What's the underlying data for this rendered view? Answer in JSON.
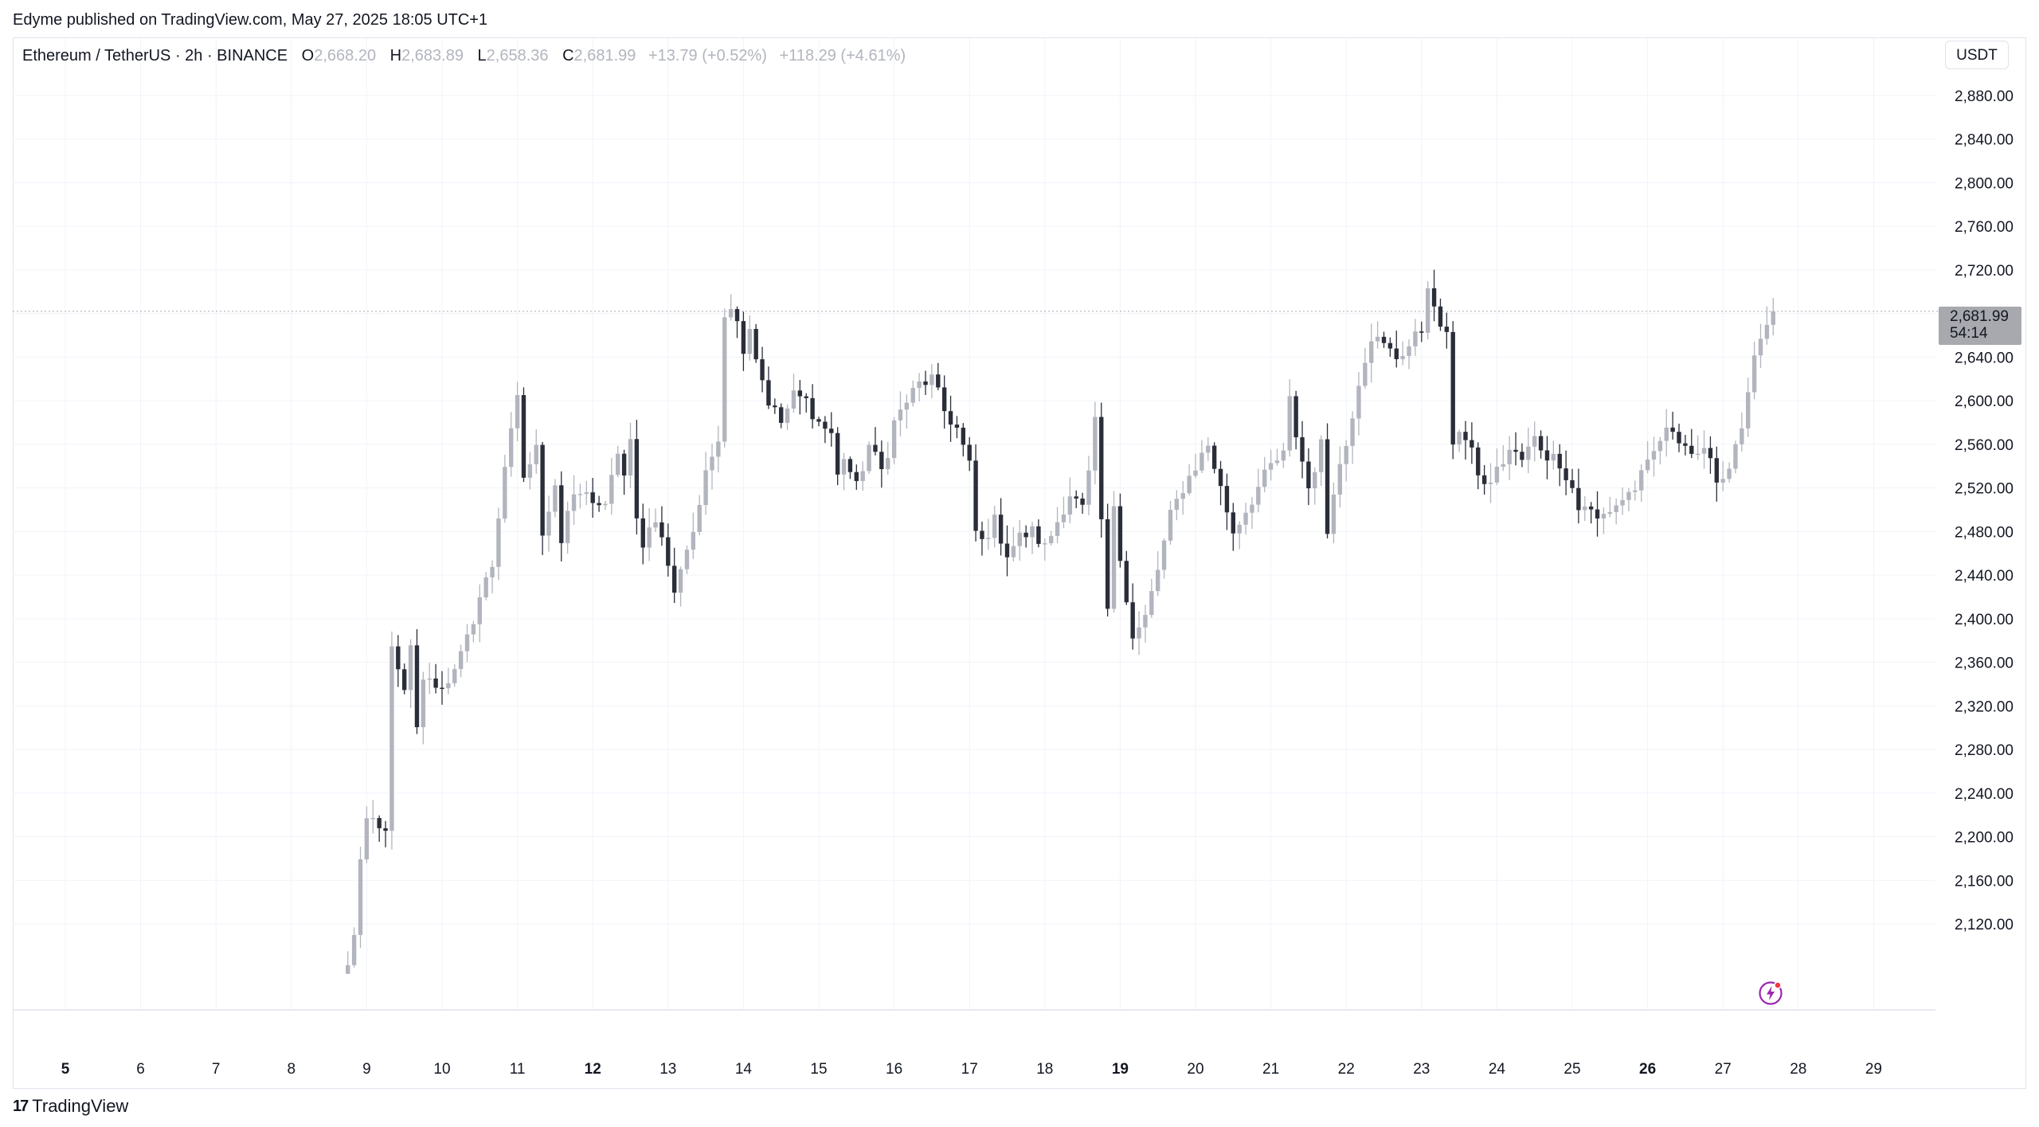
{
  "publisher": "Edyme published on TradingView.com, May 27, 2025 18:05 UTC+1",
  "legend": {
    "symbol": "Ethereum / TetherUS · 2h · BINANCE",
    "open_label": "O",
    "open": "2,668.20",
    "high_label": "H",
    "high": "2,683.89",
    "low_label": "L",
    "low": "2,658.36",
    "close_label": "C",
    "close": "2,681.99",
    "change": "+13.79 (+0.52%)",
    "change2": "+118.29 (+4.61%)"
  },
  "currency": "USDT",
  "price_badge": {
    "price": "2,681.99",
    "countdown": "54:14"
  },
  "footer": {
    "logo_mark": "17",
    "logo_text": "TradingView"
  },
  "colors": {
    "up": "#b2b5be",
    "down": "#2a2e39",
    "grid": "#f0f3fa",
    "axis_text": "#131722"
  },
  "icons": {
    "footer": "tradingview-logo-icon",
    "bolt": "lightning-icon"
  },
  "chart_data": {
    "type": "candlestick",
    "timeframe": "2h",
    "ylim": [
      2080,
      2920
    ],
    "y_ticks": [
      "2,120.00",
      "2,160.00",
      "2,200.00",
      "2,240.00",
      "2,280.00",
      "2,320.00",
      "2,360.00",
      "2,400.00",
      "2,440.00",
      "2,480.00",
      "2,520.00",
      "2,560.00",
      "2,600.00",
      "2,640.00",
      "2,680.00",
      "2,720.00",
      "2,760.00",
      "2,800.00",
      "2,840.00",
      "2,880.00"
    ],
    "x_ticks": [
      {
        "label": "5",
        "day": 5,
        "bold": true
      },
      {
        "label": "6",
        "day": 6
      },
      {
        "label": "7",
        "day": 7
      },
      {
        "label": "8",
        "day": 8
      },
      {
        "label": "9",
        "day": 9
      },
      {
        "label": "10",
        "day": 10
      },
      {
        "label": "11",
        "day": 11
      },
      {
        "label": "12",
        "day": 12,
        "bold": true
      },
      {
        "label": "13",
        "day": 13
      },
      {
        "label": "14",
        "day": 14
      },
      {
        "label": "15",
        "day": 15
      },
      {
        "label": "16",
        "day": 16
      },
      {
        "label": "17",
        "day": 17
      },
      {
        "label": "18",
        "day": 18
      },
      {
        "label": "19",
        "day": 19,
        "bold": true
      },
      {
        "label": "20",
        "day": 20
      },
      {
        "label": "21",
        "day": 21
      },
      {
        "label": "22",
        "day": 22
      },
      {
        "label": "23",
        "day": 23
      },
      {
        "label": "24",
        "day": 24
      },
      {
        "label": "25",
        "day": 25
      },
      {
        "label": "26",
        "day": 26,
        "bold": true
      },
      {
        "label": "27",
        "day": 27
      },
      {
        "label": "28",
        "day": 28
      },
      {
        "label": "29",
        "day": 29
      }
    ],
    "last_price": 2681.99,
    "waypoints": [
      [
        8.75,
        2080
      ],
      [
        8.83,
        2110
      ],
      [
        8.92,
        2180
      ],
      [
        9.0,
        2210
      ],
      [
        9.08,
        2215
      ],
      [
        9.17,
        2205
      ],
      [
        9.25,
        2210
      ],
      [
        9.33,
        2370
      ],
      [
        9.42,
        2350
      ],
      [
        9.5,
        2330
      ],
      [
        9.58,
        2375
      ],
      [
        9.67,
        2300
      ],
      [
        9.75,
        2340
      ],
      [
        9.83,
        2350
      ],
      [
        9.92,
        2335
      ],
      [
        10.0,
        2340
      ],
      [
        10.17,
        2350
      ],
      [
        10.33,
        2380
      ],
      [
        10.5,
        2420
      ],
      [
        10.67,
        2450
      ],
      [
        10.83,
        2540
      ],
      [
        10.92,
        2570
      ],
      [
        11.0,
        2600
      ],
      [
        11.08,
        2530
      ],
      [
        11.25,
        2555
      ],
      [
        11.33,
        2480
      ],
      [
        11.5,
        2525
      ],
      [
        11.58,
        2470
      ],
      [
        11.67,
        2500
      ],
      [
        11.83,
        2515
      ],
      [
        12.0,
        2510
      ],
      [
        12.17,
        2500
      ],
      [
        12.33,
        2555
      ],
      [
        12.42,
        2530
      ],
      [
        12.5,
        2560
      ],
      [
        12.58,
        2490
      ],
      [
        12.67,
        2470
      ],
      [
        12.83,
        2495
      ],
      [
        13.0,
        2450
      ],
      [
        13.08,
        2420
      ],
      [
        13.17,
        2450
      ],
      [
        13.33,
        2480
      ],
      [
        13.5,
        2530
      ],
      [
        13.67,
        2570
      ],
      [
        13.75,
        2680
      ],
      [
        13.83,
        2690
      ],
      [
        13.92,
        2670
      ],
      [
        14.0,
        2650
      ],
      [
        14.08,
        2670
      ],
      [
        14.17,
        2640
      ],
      [
        14.33,
        2600
      ],
      [
        14.5,
        2580
      ],
      [
        14.67,
        2605
      ],
      [
        14.83,
        2600
      ],
      [
        15.0,
        2580
      ],
      [
        15.17,
        2570
      ],
      [
        15.25,
        2530
      ],
      [
        15.33,
        2550
      ],
      [
        15.5,
        2520
      ],
      [
        15.67,
        2560
      ],
      [
        15.83,
        2535
      ],
      [
        15.92,
        2555
      ],
      [
        16.0,
        2580
      ],
      [
        16.17,
        2600
      ],
      [
        16.33,
        2615
      ],
      [
        16.5,
        2620
      ],
      [
        16.67,
        2590
      ],
      [
        16.83,
        2575
      ],
      [
        17.0,
        2540
      ],
      [
        17.08,
        2480
      ],
      [
        17.17,
        2470
      ],
      [
        17.33,
        2490
      ],
      [
        17.5,
        2460
      ],
      [
        17.67,
        2475
      ],
      [
        17.83,
        2480
      ],
      [
        18.0,
        2465
      ],
      [
        18.17,
        2490
      ],
      [
        18.33,
        2515
      ],
      [
        18.5,
        2500
      ],
      [
        18.58,
        2530
      ],
      [
        18.67,
        2580
      ],
      [
        18.75,
        2490
      ],
      [
        18.83,
        2400
      ],
      [
        18.92,
        2510
      ],
      [
        19.0,
        2460
      ],
      [
        19.08,
        2420
      ],
      [
        19.17,
        2380
      ],
      [
        19.33,
        2400
      ],
      [
        19.5,
        2445
      ],
      [
        19.67,
        2495
      ],
      [
        19.83,
        2520
      ],
      [
        20.0,
        2540
      ],
      [
        20.17,
        2560
      ],
      [
        20.33,
        2520
      ],
      [
        20.5,
        2480
      ],
      [
        20.67,
        2500
      ],
      [
        20.83,
        2520
      ],
      [
        21.0,
        2540
      ],
      [
        21.17,
        2550
      ],
      [
        21.25,
        2600
      ],
      [
        21.33,
        2570
      ],
      [
        21.5,
        2520
      ],
      [
        21.67,
        2560
      ],
      [
        21.75,
        2480
      ],
      [
        21.83,
        2520
      ],
      [
        22.0,
        2560
      ],
      [
        22.17,
        2620
      ],
      [
        22.33,
        2660
      ],
      [
        22.5,
        2650
      ],
      [
        22.67,
        2640
      ],
      [
        22.83,
        2650
      ],
      [
        23.0,
        2665
      ],
      [
        23.08,
        2710
      ],
      [
        23.17,
        2680
      ],
      [
        23.33,
        2660
      ],
      [
        23.42,
        2560
      ],
      [
        23.5,
        2575
      ],
      [
        23.67,
        2550
      ],
      [
        23.83,
        2520
      ],
      [
        24.0,
        2535
      ],
      [
        24.17,
        2555
      ],
      [
        24.33,
        2545
      ],
      [
        24.5,
        2565
      ],
      [
        24.67,
        2550
      ],
      [
        24.83,
        2545
      ],
      [
        25.0,
        2520
      ],
      [
        25.08,
        2500
      ],
      [
        25.17,
        2505
      ],
      [
        25.33,
        2490
      ],
      [
        25.5,
        2500
      ],
      [
        25.67,
        2510
      ],
      [
        25.83,
        2520
      ],
      [
        26.0,
        2540
      ],
      [
        26.17,
        2565
      ],
      [
        26.33,
        2575
      ],
      [
        26.5,
        2560
      ],
      [
        26.67,
        2545
      ],
      [
        26.83,
        2555
      ],
      [
        26.92,
        2525
      ],
      [
        27.0,
        2530
      ],
      [
        27.17,
        2555
      ],
      [
        27.33,
        2600
      ],
      [
        27.42,
        2640
      ],
      [
        27.5,
        2650
      ],
      [
        27.58,
        2665
      ],
      [
        27.67,
        2682
      ]
    ]
  }
}
